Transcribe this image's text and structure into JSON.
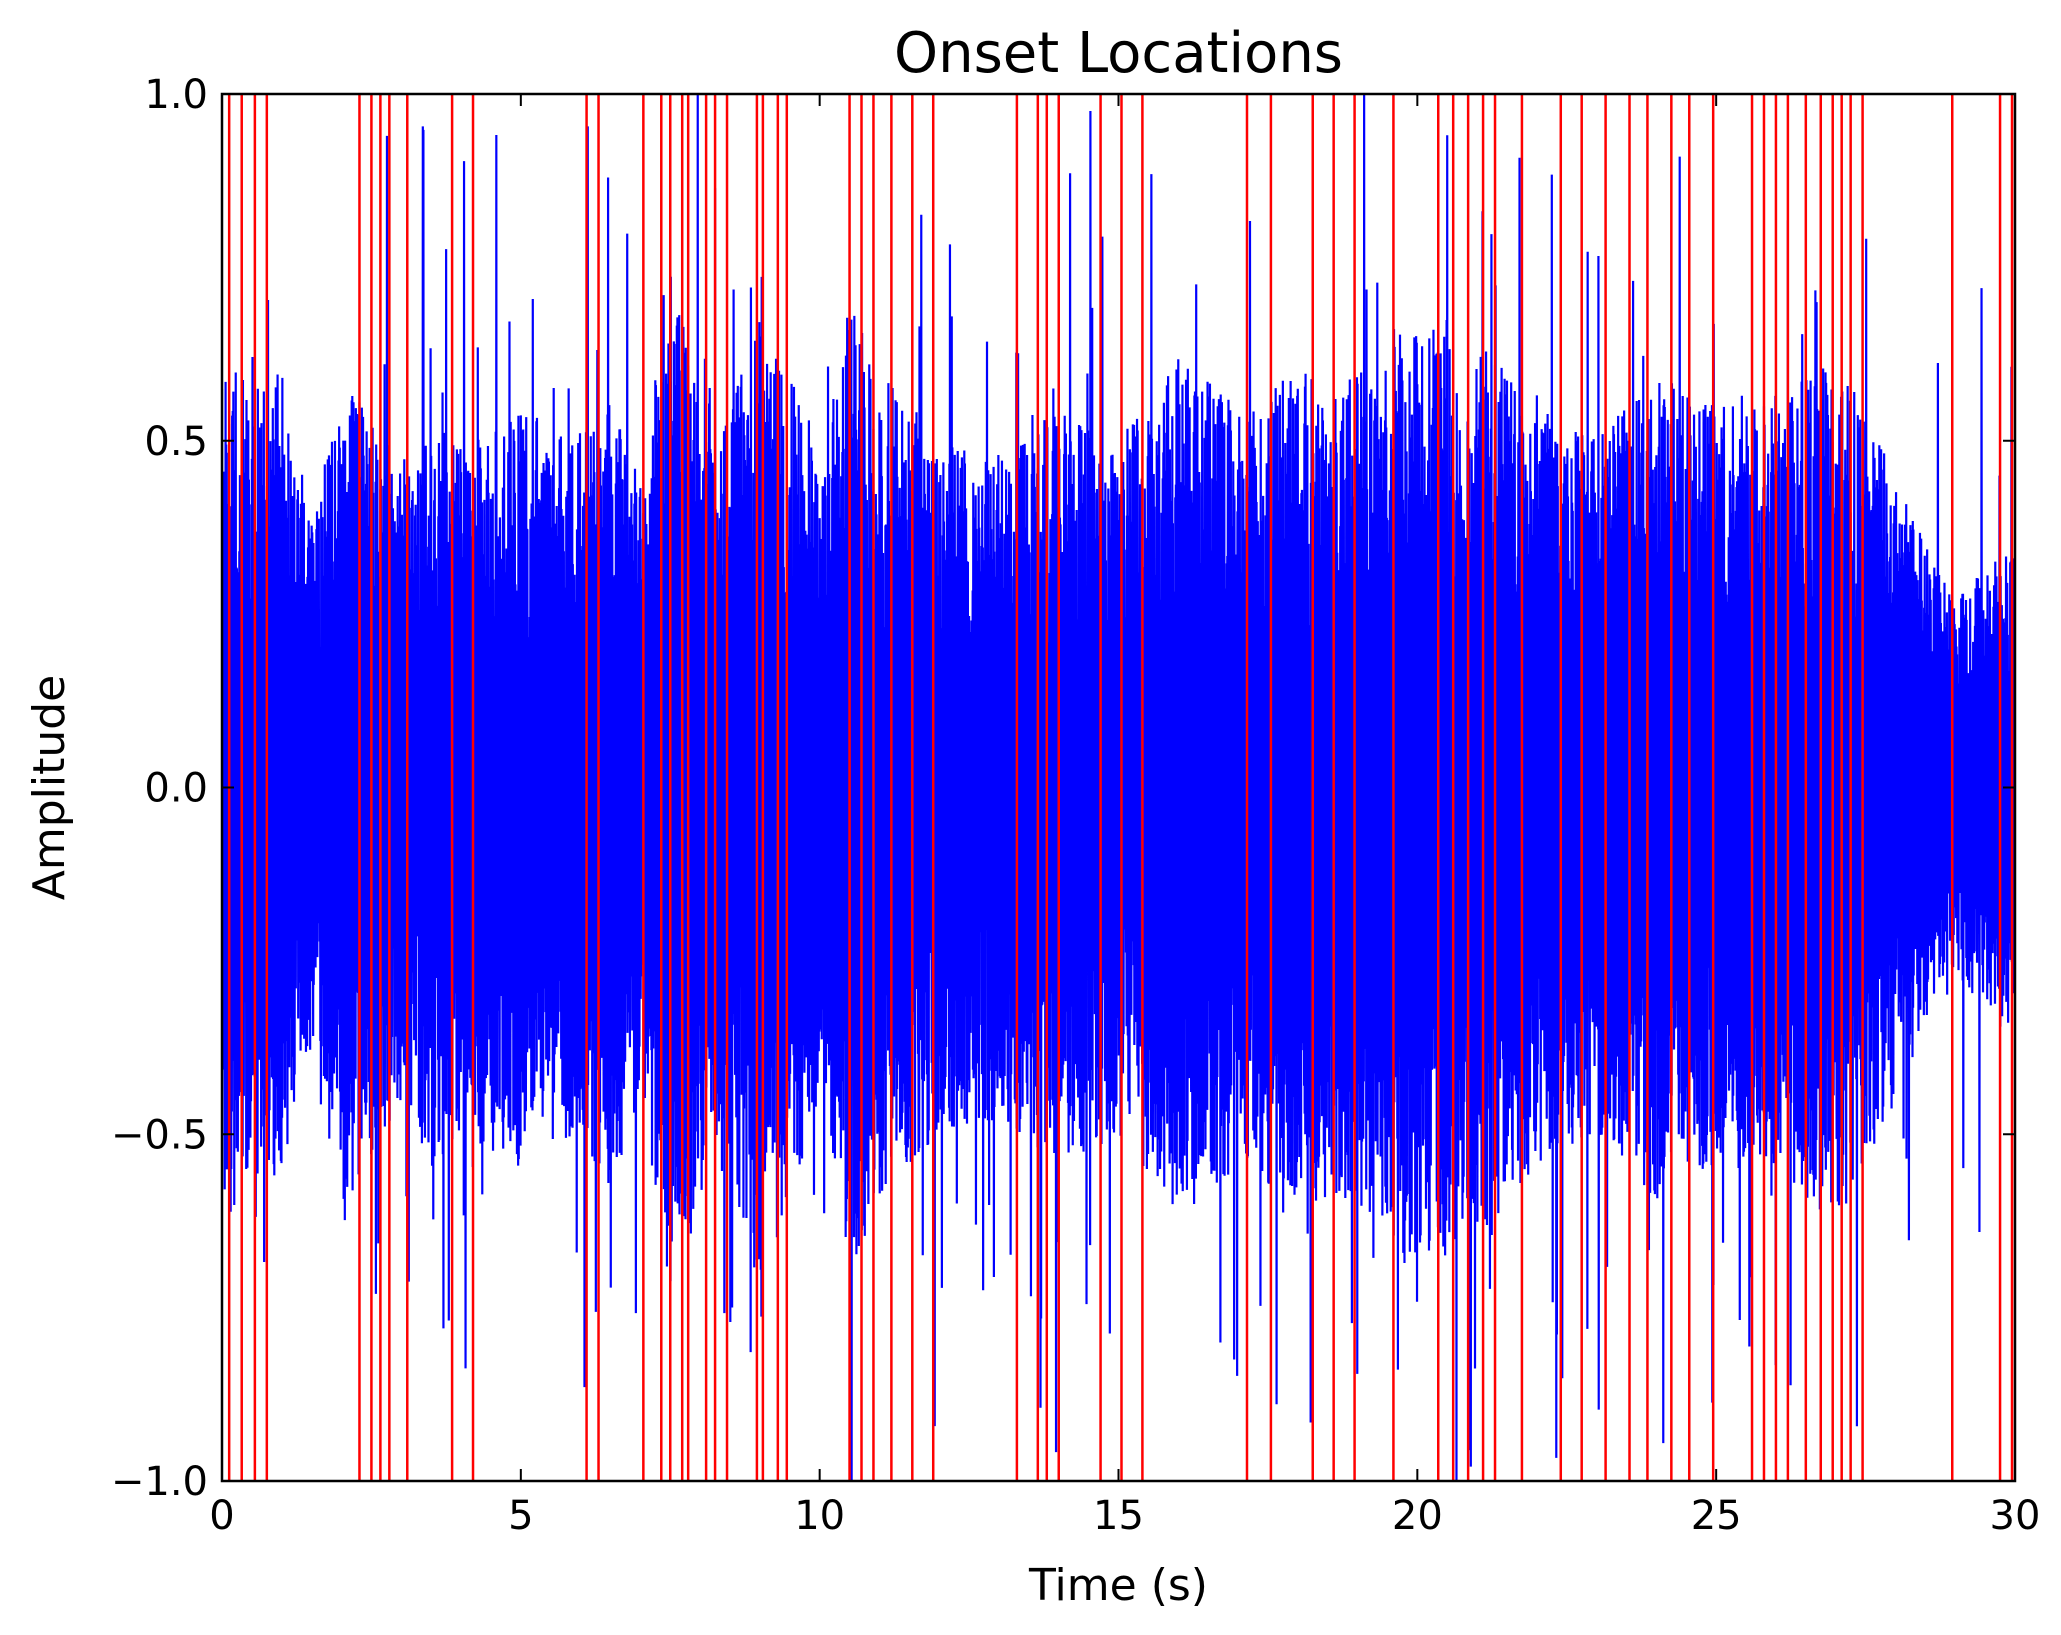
{
  "chart_data": {
    "type": "line",
    "title": "Onset Locations",
    "xlabel": "Time (s)",
    "ylabel": "Amplitude",
    "xlim": [
      0,
      30
    ],
    "ylim": [
      -1.0,
      1.0
    ],
    "grid": false,
    "x_ticks": [
      {
        "value": 0,
        "label": "0"
      },
      {
        "value": 5,
        "label": "5"
      },
      {
        "value": 10,
        "label": "10"
      },
      {
        "value": 15,
        "label": "15"
      },
      {
        "value": 20,
        "label": "20"
      },
      {
        "value": 25,
        "label": "25"
      },
      {
        "value": 30,
        "label": "30"
      }
    ],
    "y_ticks": [
      {
        "value": 1.0,
        "label": "1.0"
      },
      {
        "value": 0.5,
        "label": "0.5"
      },
      {
        "value": 0.0,
        "label": "0.0"
      },
      {
        "value": -0.5,
        "label": "−0.5"
      },
      {
        "value": -1.0,
        "label": "−1.0"
      }
    ],
    "series": [
      {
        "kind": "waveform",
        "color": "#0000ff",
        "envelope": [
          [
            0.0,
            0.62
          ],
          [
            0.5,
            0.6
          ],
          [
            1.0,
            0.55
          ],
          [
            1.5,
            0.38
          ],
          [
            2.0,
            0.6
          ],
          [
            2.5,
            0.55
          ],
          [
            3.0,
            0.45
          ],
          [
            3.5,
            0.55
          ],
          [
            4.0,
            0.5
          ],
          [
            5.0,
            0.55
          ],
          [
            6.0,
            0.5
          ],
          [
            6.5,
            0.6
          ],
          [
            7.0,
            0.45
          ],
          [
            7.5,
            0.75
          ],
          [
            8.0,
            0.6
          ],
          [
            8.5,
            0.55
          ],
          [
            9.0,
            0.75
          ],
          [
            9.5,
            0.6
          ],
          [
            10.0,
            0.45
          ],
          [
            10.5,
            0.7
          ],
          [
            11.0,
            0.6
          ],
          [
            12.0,
            0.5
          ],
          [
            13.0,
            0.48
          ],
          [
            14.0,
            0.55
          ],
          [
            15.0,
            0.5
          ],
          [
            16.0,
            0.62
          ],
          [
            17.0,
            0.55
          ],
          [
            18.0,
            0.6
          ],
          [
            19.0,
            0.6
          ],
          [
            20.0,
            0.7
          ],
          [
            21.0,
            0.65
          ],
          [
            22.0,
            0.55
          ],
          [
            23.0,
            0.5
          ],
          [
            24.0,
            0.6
          ],
          [
            25.0,
            0.55
          ],
          [
            26.0,
            0.55
          ],
          [
            27.0,
            0.65
          ],
          [
            28.0,
            0.45
          ],
          [
            28.5,
            0.35
          ],
          [
            29.0,
            0.28
          ],
          [
            30.0,
            0.35
          ]
        ]
      },
      {
        "kind": "vlines",
        "color": "#ff0000",
        "x": [
          0.12,
          0.33,
          0.55,
          0.75,
          2.3,
          2.5,
          2.65,
          2.8,
          3.1,
          3.85,
          4.2,
          6.1,
          6.3,
          7.05,
          7.35,
          7.5,
          7.7,
          7.8,
          8.1,
          8.25,
          8.45,
          8.95,
          9.05,
          9.3,
          9.45,
          10.5,
          10.7,
          10.9,
          11.2,
          11.55,
          11.9,
          13.3,
          13.65,
          13.8,
          14.0,
          14.7,
          15.05,
          15.4,
          17.15,
          17.55,
          18.25,
          18.6,
          18.95,
          19.6,
          20.35,
          20.6,
          20.85,
          21.1,
          21.3,
          21.75,
          22.4,
          22.75,
          23.15,
          23.55,
          23.85,
          24.25,
          24.55,
          24.95,
          25.6,
          25.8,
          26.0,
          26.2,
          26.5,
          26.75,
          26.95,
          27.1,
          27.25,
          27.45,
          28.95,
          29.75,
          29.95
        ]
      }
    ]
  }
}
